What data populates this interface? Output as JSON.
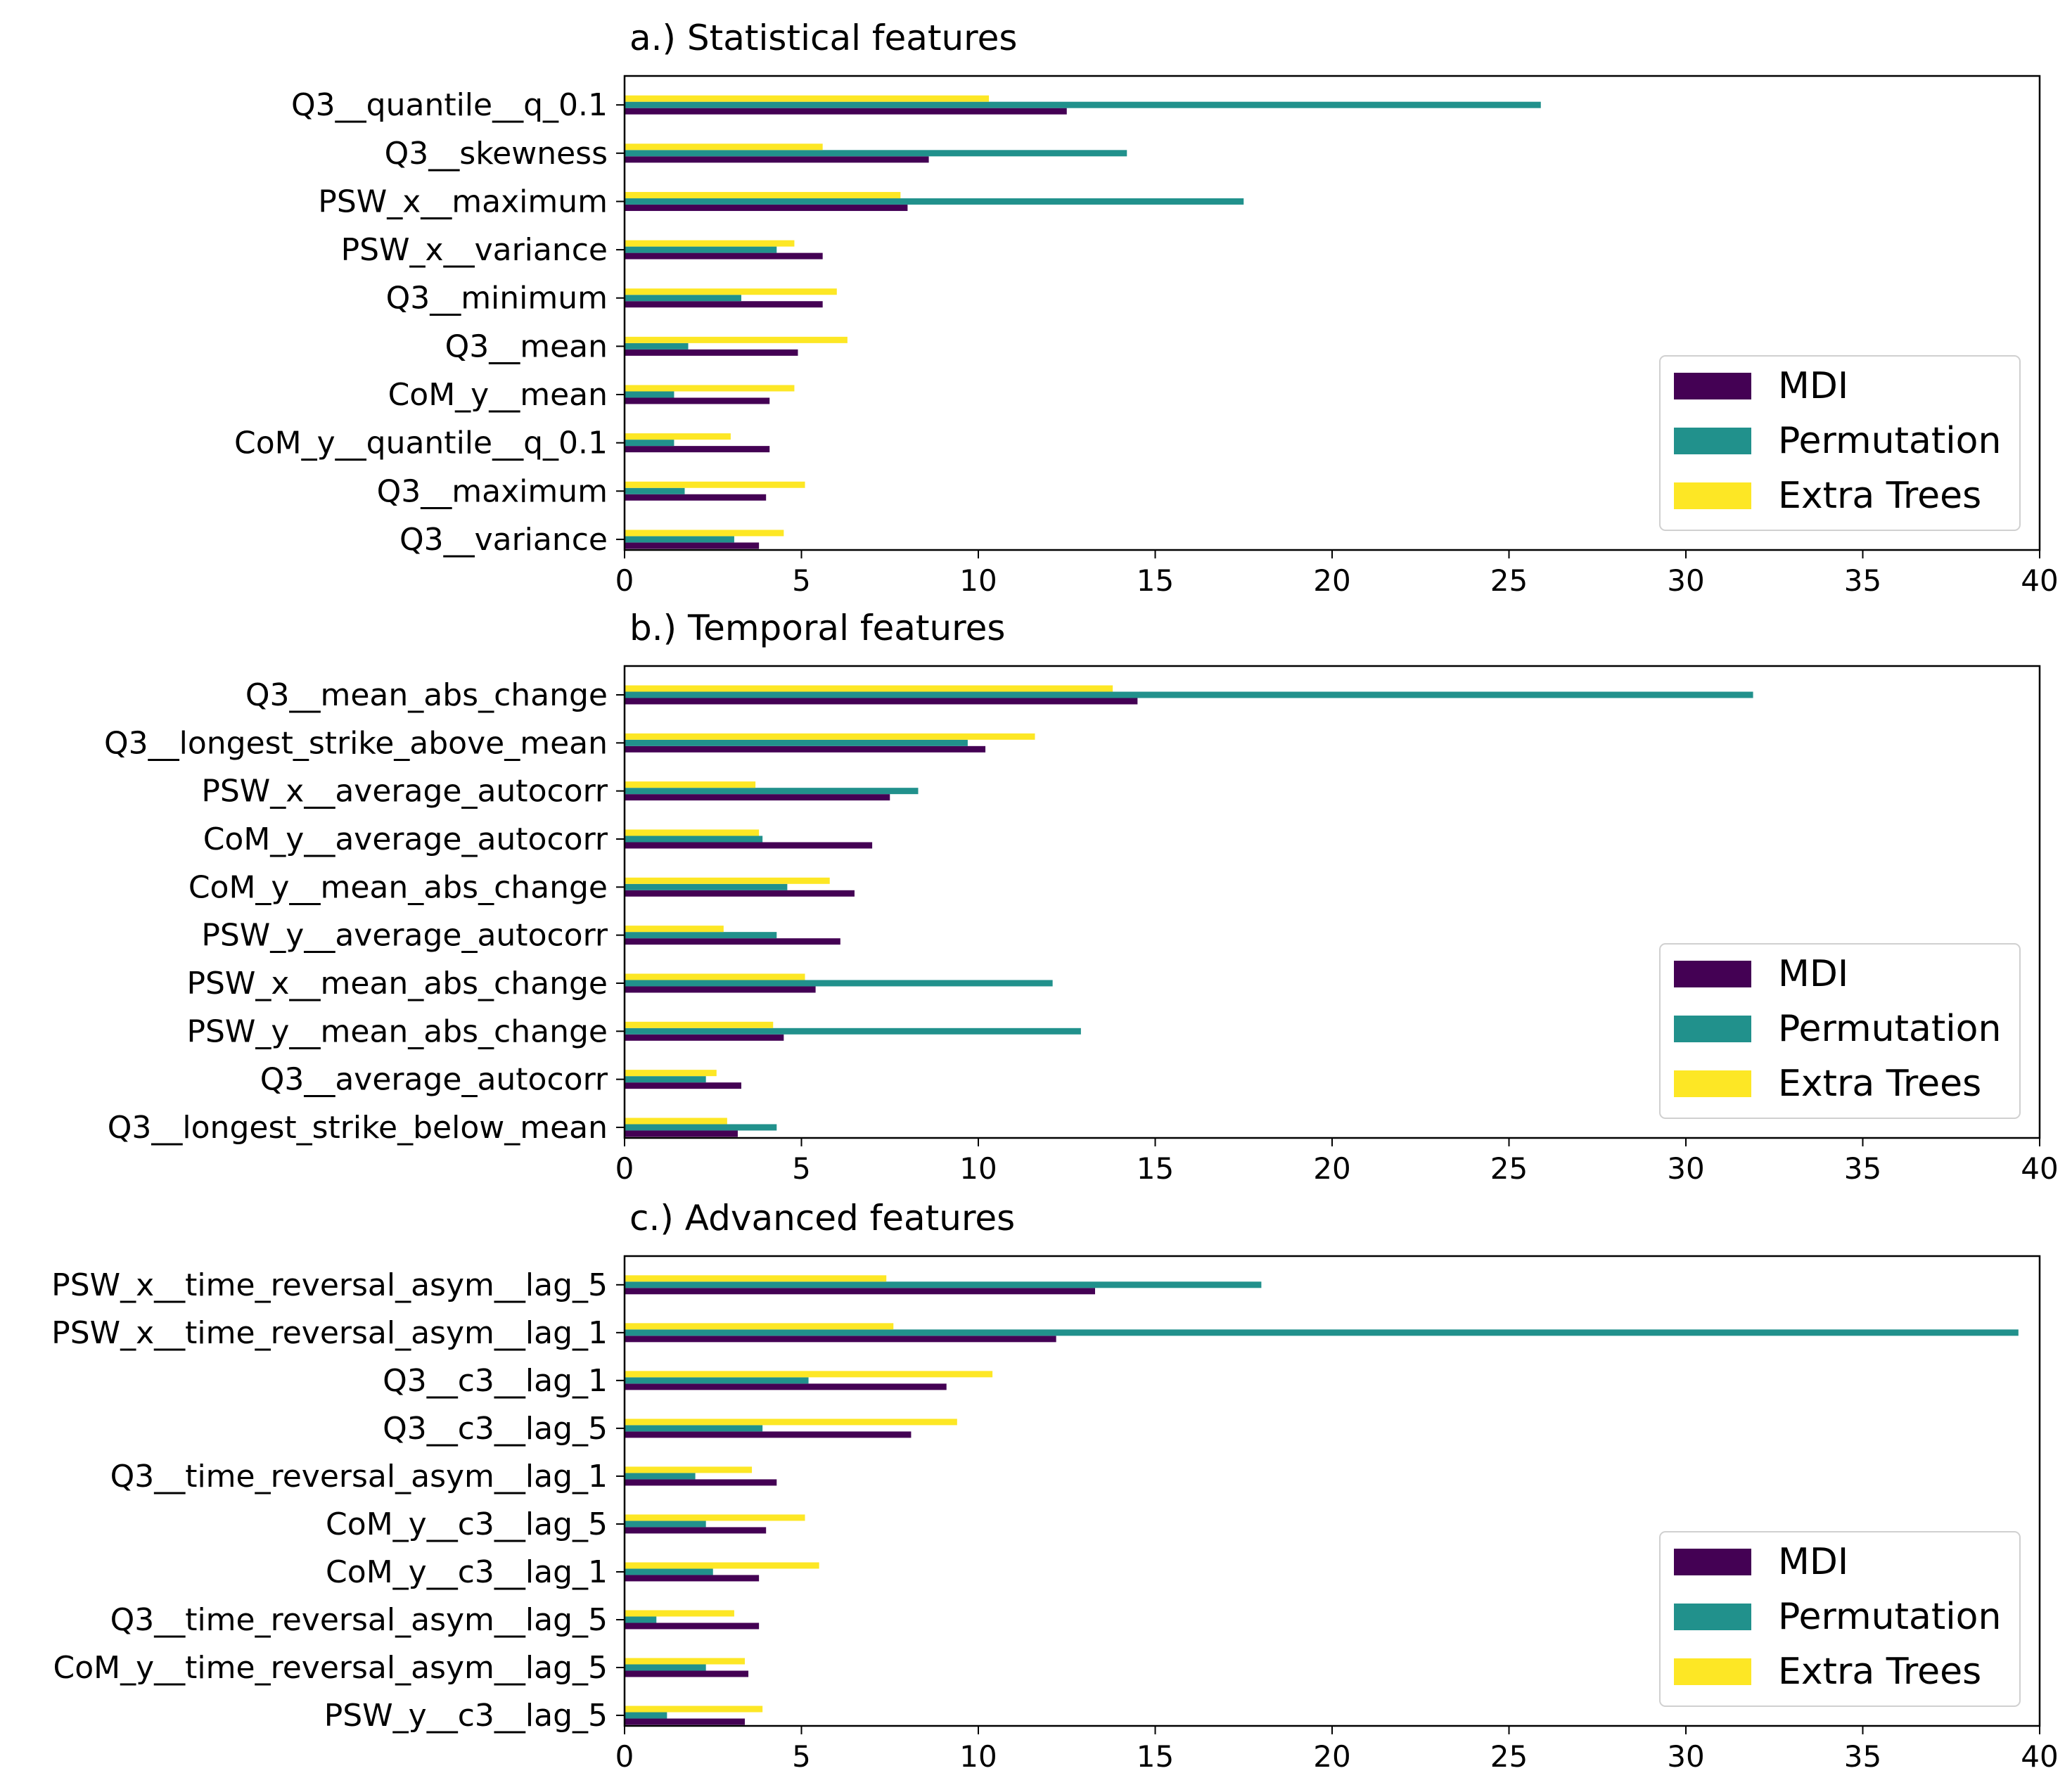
{
  "legend": [
    "MDI",
    "Permutation",
    "Extra Trees"
  ],
  "colors": {
    "MDI": "#440154",
    "Permutation": "#21918c",
    "Extra Trees": "#fde725"
  },
  "chart_data": [
    {
      "type": "bar",
      "orientation": "horizontal",
      "title": "a.) Statistical features",
      "xlim": [
        0,
        40
      ],
      "xticks": [
        0,
        5,
        10,
        15,
        20,
        25,
        30,
        35,
        40
      ],
      "legend_position": "lower-right",
      "categories": [
        "Q3__quantile__q_0.1",
        "Q3__skewness",
        "PSW_x__maximum",
        "PSW_x__variance",
        "Q3__minimum",
        "Q3__mean",
        "CoM_y__mean",
        "CoM_y__quantile__q_0.1",
        "Q3__maximum",
        "Q3__variance"
      ],
      "series": [
        {
          "name": "MDI",
          "values": [
            12.5,
            8.6,
            8.0,
            5.6,
            5.6,
            4.9,
            4.1,
            4.1,
            4.0,
            3.8
          ]
        },
        {
          "name": "Permutation",
          "values": [
            25.9,
            14.2,
            17.5,
            4.3,
            3.3,
            1.8,
            1.4,
            1.4,
            1.7,
            3.1
          ]
        },
        {
          "name": "Extra Trees",
          "values": [
            10.3,
            5.6,
            7.8,
            4.8,
            6.0,
            6.3,
            4.8,
            3.0,
            5.1,
            4.5
          ]
        }
      ]
    },
    {
      "type": "bar",
      "orientation": "horizontal",
      "title": "b.) Temporal features",
      "xlim": [
        0,
        40
      ],
      "xticks": [
        0,
        5,
        10,
        15,
        20,
        25,
        30,
        35,
        40
      ],
      "legend_position": "lower-right",
      "categories": [
        "Q3__mean_abs_change",
        "Q3__longest_strike_above_mean",
        "PSW_x__average_autocorr",
        "CoM_y__average_autocorr",
        "CoM_y__mean_abs_change",
        "PSW_y__average_autocorr",
        "PSW_x__mean_abs_change",
        "PSW_y__mean_abs_change",
        "Q3__average_autocorr",
        "Q3__longest_strike_below_mean"
      ],
      "series": [
        {
          "name": "MDI",
          "values": [
            14.5,
            10.2,
            7.5,
            7.0,
            6.5,
            6.1,
            5.4,
            4.5,
            3.3,
            3.2
          ]
        },
        {
          "name": "Permutation",
          "values": [
            31.9,
            9.7,
            8.3,
            3.9,
            4.6,
            4.3,
            12.1,
            12.9,
            2.3,
            4.3
          ]
        },
        {
          "name": "Extra Trees",
          "values": [
            13.8,
            11.6,
            3.7,
            3.8,
            5.8,
            2.8,
            5.1,
            4.2,
            2.6,
            2.9
          ]
        }
      ]
    },
    {
      "type": "bar",
      "orientation": "horizontal",
      "title": "c.) Advanced features",
      "xlim": [
        0,
        40
      ],
      "xticks": [
        0,
        5,
        10,
        15,
        20,
        25,
        30,
        35,
        40
      ],
      "legend_position": "lower-right",
      "categories": [
        "PSW_x__time_reversal_asym__lag_5",
        "PSW_x__time_reversal_asym__lag_1",
        "Q3__c3__lag_1",
        "Q3__c3__lag_5",
        "Q3__time_reversal_asym__lag_1",
        "CoM_y__c3__lag_5",
        "CoM_y__c3__lag_1",
        "Q3__time_reversal_asym__lag_5",
        "CoM_y__time_reversal_asym__lag_5",
        "PSW_y__c3__lag_5"
      ],
      "series": [
        {
          "name": "MDI",
          "values": [
            13.3,
            12.2,
            9.1,
            8.1,
            4.3,
            4.0,
            3.8,
            3.8,
            3.5,
            3.4
          ]
        },
        {
          "name": "Permutation",
          "values": [
            18.0,
            39.4,
            5.2,
            3.9,
            2.0,
            2.3,
            2.5,
            0.9,
            2.3,
            1.2
          ]
        },
        {
          "name": "Extra Trees",
          "values": [
            7.4,
            7.6,
            10.4,
            9.4,
            3.6,
            5.1,
            5.5,
            3.1,
            3.4,
            3.9
          ]
        }
      ]
    }
  ]
}
